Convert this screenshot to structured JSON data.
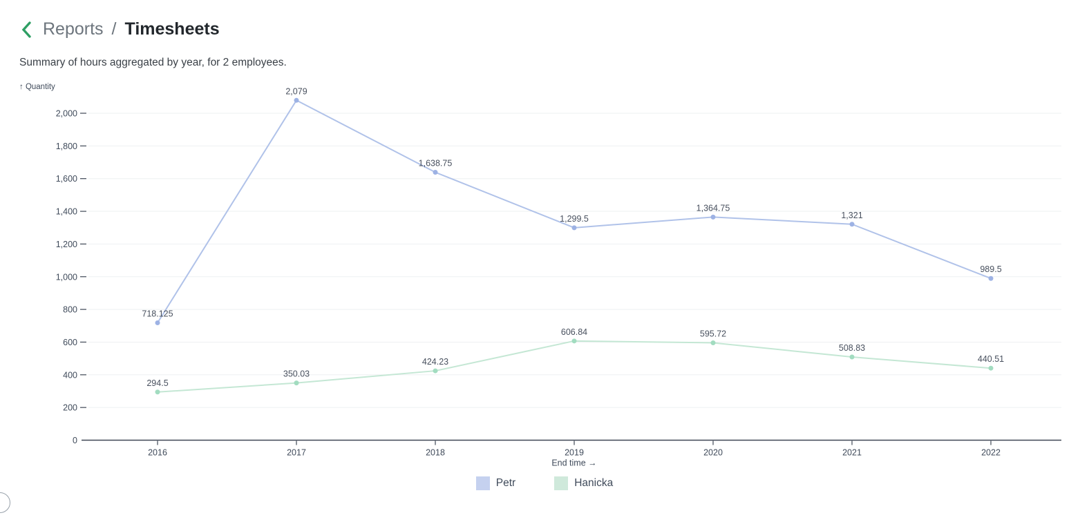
{
  "header": {
    "back_icon_color": "#2f9f64",
    "breadcrumb_parent": "Reports",
    "breadcrumb_separator": "/",
    "breadcrumb_current": "Timesheets"
  },
  "subtitle": {
    "text": "Summary of hours aggregated by year, for 2 employees."
  },
  "chart_data": {
    "type": "line",
    "title": "",
    "xlabel": "End time →",
    "ylabel": "↑ Quantity",
    "categories": [
      "2016",
      "2017",
      "2018",
      "2019",
      "2020",
      "2021",
      "2022"
    ],
    "series": [
      {
        "name": "Petr",
        "color_line": "#b0c2e9",
        "color_point": "#9db2e4",
        "color_swatch": "#c5d1ef",
        "values": [
          718.125,
          2079,
          1638.75,
          1299.5,
          1364.75,
          1321,
          989.5
        ],
        "labels": [
          "718.125",
          "2,079",
          "1,638.75",
          "1,299.5",
          "1,364.75",
          "1,321",
          "989.5"
        ]
      },
      {
        "name": "Hanicka",
        "color_line": "#c4e7d4",
        "color_point": "#a2dcc0",
        "color_swatch": "#cfe9db",
        "values": [
          294.5,
          350.03,
          424.23,
          606.84,
          595.72,
          508.83,
          440.51
        ],
        "labels": [
          "294.5",
          "350.03",
          "424.23",
          "606.84",
          "595.72",
          "508.83",
          "440.51"
        ]
      }
    ],
    "ylim": [
      0,
      2100
    ],
    "yticks": [
      {
        "value": 0,
        "label": "0"
      },
      {
        "value": 200,
        "label": "200"
      },
      {
        "value": 400,
        "label": "400"
      },
      {
        "value": 600,
        "label": "600"
      },
      {
        "value": 800,
        "label": "800"
      },
      {
        "value": 1000,
        "label": "1,000"
      },
      {
        "value": 1200,
        "label": "1,200"
      },
      {
        "value": 1400,
        "label": "1,400"
      },
      {
        "value": 1600,
        "label": "1,600"
      },
      {
        "value": 1800,
        "label": "1,800"
      },
      {
        "value": 2000,
        "label": "2,000"
      }
    ],
    "grid": true,
    "legend_position": "bottom",
    "colors": {
      "grid": "#eef0f2",
      "axis": "#3d4654"
    }
  }
}
